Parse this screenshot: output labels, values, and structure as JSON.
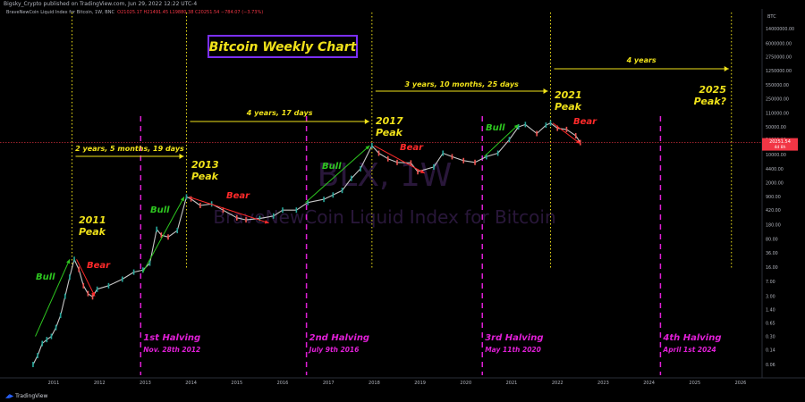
{
  "header": {
    "publish_line": "Bigsky_Crypto published on TradingView.com, Jun 29, 2022 12:22 UTC-4",
    "symbol_line": "BraveNewCoin Liquid Index for Bitcoin, 1W, BNC",
    "ohlc": "O21025.17 H21491.45 L19880.38 C20251.54 −784.07 (−3.73%)",
    "currency": "BTC"
  },
  "footer": {
    "brand": "TradingView"
  },
  "watermark": {
    "symbol": "BLX, 1W",
    "name": "BraveNewCoin Liquid Index for Bitcoin"
  },
  "price_label": {
    "value": "20251.54",
    "sub": "4d 8h"
  },
  "chart_data": {
    "type": "line",
    "title": "Bitcoin Weekly Chart",
    "y_scale": "log",
    "y_ticks": [
      "14000000.00",
      "6000000.00",
      "2750000.00",
      "1250000.00",
      "550000.00",
      "250000.00",
      "110000.00",
      "50000.00",
      "24000.00",
      "10000.00",
      "4400.00",
      "2000.00",
      "900.00",
      "420.00",
      "180.00",
      "80.00",
      "36.00",
      "16.00",
      "7.00",
      "3.00",
      "1.40",
      "0.65",
      "0.30",
      "0.14",
      "0.06"
    ],
    "x_ticks": [
      "2011",
      "2012",
      "2013",
      "2014",
      "2015",
      "2016",
      "2017",
      "2018",
      "2019",
      "2020",
      "2021",
      "2022",
      "2023",
      "2024",
      "2025",
      "2026"
    ],
    "series": [
      {
        "values_note": "weekly close",
        "x": [
          2010.55,
          2010.65,
          2010.75,
          2010.85,
          2010.95,
          2011.05,
          2011.15,
          2011.25,
          2011.35,
          2011.45,
          2011.55,
          2011.65,
          2011.75,
          2011.85,
          2011.95,
          2012.2,
          2012.5,
          2012.75,
          2012.95,
          2013.1,
          2013.25,
          2013.35,
          2013.5,
          2013.7,
          2013.9,
          2014.0,
          2014.2,
          2014.45,
          2014.7,
          2015.0,
          2015.2,
          2015.5,
          2015.8,
          2016.0,
          2016.3,
          2016.55,
          2016.9,
          2017.1,
          2017.3,
          2017.5,
          2017.7,
          2017.95,
          2018.1,
          2018.3,
          2018.5,
          2018.8,
          2018.95,
          2019.3,
          2019.5,
          2019.7,
          2019.95,
          2020.2,
          2020.45,
          2020.7,
          2020.95,
          2021.15,
          2021.3,
          2021.55,
          2021.75,
          2021.85,
          2022.0,
          2022.2,
          2022.4,
          2022.5
        ],
        "y": [
          0.06,
          0.1,
          0.2,
          0.25,
          0.3,
          0.5,
          1.0,
          3.0,
          9.0,
          25.0,
          14.0,
          5.5,
          3.5,
          2.9,
          4.5,
          5.5,
          8.0,
          12.0,
          13.5,
          20.0,
          140.0,
          100.0,
          90.0,
          130.0,
          900.0,
          800.0,
          550.0,
          600.0,
          420.0,
          270.0,
          240.0,
          260.0,
          300.0,
          420.0,
          420.0,
          650.0,
          780.0,
          1000.0,
          1300.0,
          2600.0,
          4500.0,
          17000.0,
          11000.0,
          8000.0,
          6500.0,
          6300.0,
          3800.0,
          5000.0,
          11000.0,
          9000.0,
          7200.0,
          6500.0,
          9000.0,
          11000.0,
          24000.0,
          50000.0,
          57000.0,
          34000.0,
          55000.0,
          62000.0,
          46000.0,
          43000.0,
          30000.0,
          20251.54
        ]
      }
    ],
    "annotations": {
      "peaks": [
        {
          "label": "2011",
          "sub": "Peak",
          "year": 2011.4
        },
        {
          "label": "2013",
          "sub": "Peak",
          "year": 2013.9
        },
        {
          "label": "2017",
          "sub": "Peak",
          "year": 2017.95
        },
        {
          "label": "2021",
          "sub": "Peak",
          "year": 2021.85
        },
        {
          "label": "2025",
          "sub": "Peak?",
          "year": 2025.8
        }
      ],
      "durations": [
        {
          "label": "2 years, 5 months, 19 days",
          "from": 2011.4,
          "to": 2013.9
        },
        {
          "label": "4 years, 17 days",
          "from": 2013.9,
          "to": 2017.95
        },
        {
          "label": "3 years, 10 months, 25 days",
          "from": 2017.95,
          "to": 2021.85
        },
        {
          "label": "4 years",
          "from": 2021.85,
          "to": 2025.8
        }
      ],
      "halvings": [
        {
          "label": "1st Halving",
          "date": "Nov. 28th 2012",
          "year": 2012.9
        },
        {
          "label": "2nd Halving",
          "date": "July 9th 2016",
          "year": 2016.52
        },
        {
          "label": "3rd Halving",
          "date": "May 11th 2020",
          "year": 2020.36
        },
        {
          "label": "4th Halving",
          "date": "April 1st 2024",
          "year": 2024.25
        }
      ],
      "bull_label": "Bull",
      "bear_label": "Bear"
    },
    "colors": {
      "bull": "#26a69a",
      "bear": "#ef5350",
      "annotation": "#f0e21a",
      "halving": "#e01fd6",
      "title_border": "#7b2ff7",
      "price_line": "#f23645"
    }
  }
}
